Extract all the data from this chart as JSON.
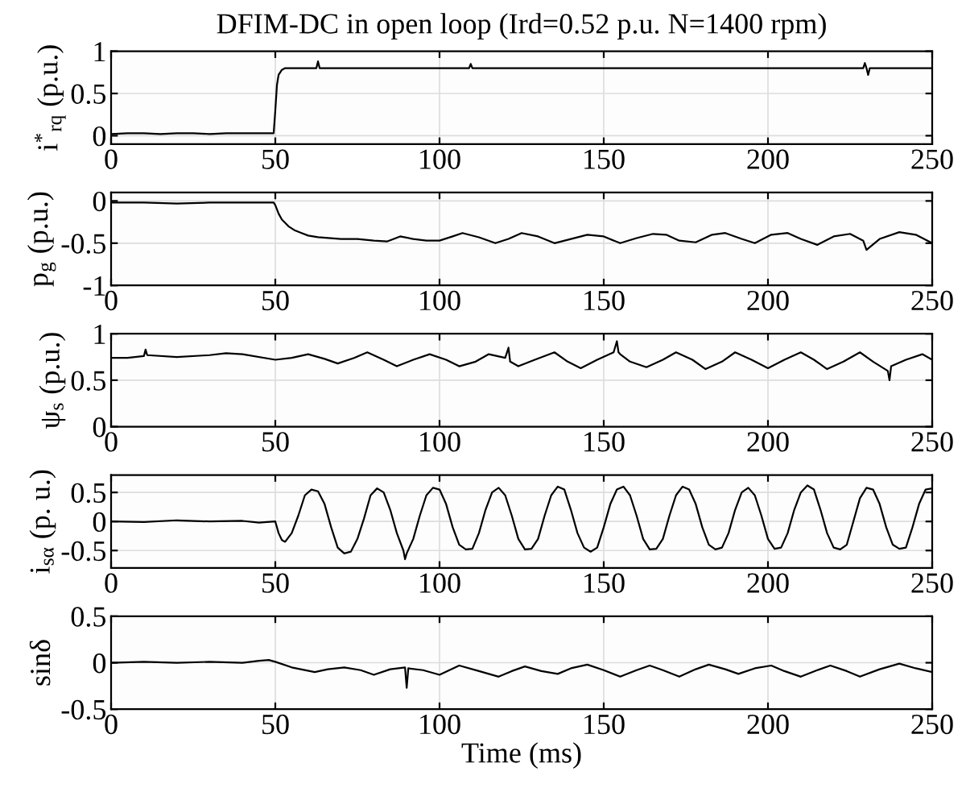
{
  "chart_data": [
    {
      "type": "line",
      "title": "DFIM-DC in open loop (Ird=0.52 p.u. N=1400 rpm)",
      "ylabel": "i$^{*}$$_{rq}$ (p.u.)",
      "xlim": [
        0,
        250
      ],
      "xticks": [
        0,
        50,
        100,
        150,
        200,
        250
      ],
      "ylim": [
        -0.1,
        1
      ],
      "yticks": [
        0,
        0.5,
        1
      ],
      "grid": true,
      "series": [
        {
          "color": "#000000",
          "x": [
            0,
            5,
            10,
            15,
            20,
            25,
            30,
            35,
            40,
            45,
            49.5,
            50,
            50.5,
            51,
            52,
            53,
            55,
            60,
            62.5,
            63,
            63.5,
            70,
            80,
            90,
            100,
            109,
            109.5,
            110,
            120,
            130,
            140,
            150,
            160,
            170,
            180,
            190,
            200,
            210,
            220,
            229,
            229.5,
            230,
            230.5,
            231,
            240,
            250
          ],
          "values": [
            0.02,
            0.03,
            0.03,
            0.02,
            0.03,
            0.03,
            0.02,
            0.03,
            0.03,
            0.03,
            0.03,
            0.3,
            0.6,
            0.72,
            0.78,
            0.8,
            0.8,
            0.8,
            0.8,
            0.88,
            0.8,
            0.8,
            0.8,
            0.8,
            0.8,
            0.8,
            0.85,
            0.8,
            0.8,
            0.8,
            0.8,
            0.8,
            0.8,
            0.8,
            0.8,
            0.8,
            0.8,
            0.8,
            0.8,
            0.8,
            0.86,
            0.8,
            0.72,
            0.8,
            0.8,
            0.8
          ]
        }
      ]
    },
    {
      "type": "line",
      "ylabel": "p$_{g}$ (p.u.)",
      "xlim": [
        0,
        250
      ],
      "xticks": [
        0,
        50,
        100,
        150,
        200,
        250
      ],
      "ylim": [
        -1,
        0.1
      ],
      "yticks": [
        -1,
        -0.5,
        0
      ],
      "grid": true,
      "series": [
        {
          "color": "#000000",
          "x": [
            0,
            10,
            20,
            30,
            40,
            49.5,
            50,
            51,
            52,
            54,
            56,
            58,
            60,
            63,
            70,
            75,
            80,
            84,
            88,
            92,
            96,
            100,
            104,
            107,
            112,
            117,
            121,
            125,
            130,
            135,
            140,
            145,
            150,
            155,
            160,
            165,
            169,
            173,
            178,
            183,
            187,
            192,
            196,
            201,
            206,
            210,
            215,
            220,
            225,
            229,
            230,
            234,
            240,
            245,
            250
          ],
          "values": [
            -0.02,
            -0.02,
            -0.03,
            -0.02,
            -0.02,
            -0.02,
            -0.05,
            -0.15,
            -0.22,
            -0.3,
            -0.35,
            -0.38,
            -0.41,
            -0.43,
            -0.45,
            -0.45,
            -0.47,
            -0.48,
            -0.42,
            -0.45,
            -0.47,
            -0.47,
            -0.42,
            -0.38,
            -0.43,
            -0.5,
            -0.45,
            -0.38,
            -0.42,
            -0.5,
            -0.45,
            -0.4,
            -0.42,
            -0.5,
            -0.44,
            -0.39,
            -0.4,
            -0.47,
            -0.49,
            -0.4,
            -0.38,
            -0.45,
            -0.5,
            -0.4,
            -0.38,
            -0.45,
            -0.52,
            -0.42,
            -0.39,
            -0.47,
            -0.58,
            -0.45,
            -0.37,
            -0.4,
            -0.5
          ]
        }
      ]
    },
    {
      "type": "line",
      "ylabel": "ψ$_{s}$ (p.u.)",
      "xlim": [
        0,
        250
      ],
      "xticks": [
        0,
        50,
        100,
        150,
        200,
        250
      ],
      "ylim": [
        0,
        1
      ],
      "yticks": [
        0,
        0.5,
        1
      ],
      "grid": true,
      "series": [
        {
          "color": "#000000",
          "x": [
            0,
            5,
            10,
            10.5,
            11,
            20,
            30,
            35,
            40,
            50,
            55,
            60,
            65,
            69,
            74,
            78,
            83,
            87,
            92,
            97,
            102,
            106,
            111,
            115,
            120,
            121,
            121.5,
            124,
            129,
            135,
            139,
            143,
            148,
            153,
            154,
            154.5,
            155,
            158,
            163,
            168,
            172,
            177,
            181,
            186,
            190,
            195,
            200,
            205,
            210,
            214,
            218,
            223,
            228,
            232,
            236.5,
            237,
            237.5,
            242,
            247,
            250
          ],
          "values": [
            0.74,
            0.74,
            0.76,
            0.83,
            0.77,
            0.75,
            0.77,
            0.79,
            0.78,
            0.72,
            0.74,
            0.78,
            0.73,
            0.68,
            0.74,
            0.8,
            0.72,
            0.65,
            0.72,
            0.78,
            0.72,
            0.65,
            0.7,
            0.78,
            0.74,
            0.85,
            0.7,
            0.65,
            0.72,
            0.8,
            0.7,
            0.63,
            0.72,
            0.8,
            0.92,
            0.8,
            0.78,
            0.7,
            0.64,
            0.72,
            0.8,
            0.72,
            0.62,
            0.7,
            0.8,
            0.72,
            0.63,
            0.72,
            0.8,
            0.72,
            0.62,
            0.7,
            0.8,
            0.7,
            0.6,
            0.5,
            0.65,
            0.72,
            0.78,
            0.72
          ]
        }
      ]
    },
    {
      "type": "line",
      "ylabel": "i$_{sα}$ (p. u.)",
      "xlim": [
        0,
        250
      ],
      "xticks": [
        0,
        50,
        100,
        150,
        200,
        250
      ],
      "ylim": [
        -0.8,
        0.8
      ],
      "yticks": [
        -0.5,
        0,
        0.5
      ],
      "grid": true,
      "series": [
        {
          "color": "#000000",
          "x": [
            0,
            10,
            20,
            30,
            40,
            45,
            50,
            51,
            52,
            53,
            55,
            57,
            59,
            61,
            63,
            65,
            67,
            69,
            71,
            73,
            75,
            77,
            79,
            81,
            83,
            85,
            87,
            89,
            89.5,
            90,
            92,
            94,
            96,
            98,
            100,
            102,
            104,
            106,
            108,
            110,
            112,
            114,
            116,
            118,
            120,
            122,
            124,
            126,
            128,
            130,
            132,
            134,
            136,
            138,
            140,
            142,
            144,
            146,
            148,
            150,
            152,
            154,
            156,
            158,
            160,
            162,
            164,
            166,
            168,
            170,
            172,
            174,
            176,
            178,
            180,
            182,
            184,
            186,
            188,
            190,
            192,
            194,
            196,
            198,
            200,
            202,
            204,
            206,
            208,
            210,
            212,
            214,
            216,
            218,
            220,
            222,
            224,
            226,
            228,
            230,
            232,
            234,
            236,
            238,
            240,
            242,
            244,
            246,
            248,
            250
          ],
          "values": [
            0,
            -0.01,
            0.02,
            0.0,
            0.01,
            -0.02,
            0.0,
            -0.2,
            -0.32,
            -0.35,
            -0.2,
            0.1,
            0.45,
            0.55,
            0.52,
            0.3,
            -0.1,
            -0.45,
            -0.55,
            -0.52,
            -0.3,
            0.05,
            0.45,
            0.57,
            0.5,
            0.2,
            -0.2,
            -0.5,
            -0.65,
            -0.55,
            -0.3,
            0.1,
            0.45,
            0.58,
            0.55,
            0.3,
            -0.1,
            -0.4,
            -0.48,
            -0.47,
            -0.2,
            0.2,
            0.5,
            0.58,
            0.45,
            0.1,
            -0.3,
            -0.48,
            -0.47,
            -0.3,
            0.1,
            0.45,
            0.6,
            0.55,
            0.2,
            -0.2,
            -0.45,
            -0.52,
            -0.45,
            -0.1,
            0.3,
            0.55,
            0.6,
            0.45,
            0.1,
            -0.3,
            -0.48,
            -0.47,
            -0.3,
            0.1,
            0.45,
            0.6,
            0.55,
            0.3,
            -0.1,
            -0.4,
            -0.48,
            -0.45,
            -0.2,
            0.2,
            0.5,
            0.58,
            0.45,
            0.1,
            -0.3,
            -0.47,
            -0.45,
            -0.2,
            0.2,
            0.5,
            0.62,
            0.55,
            0.2,
            -0.2,
            -0.45,
            -0.48,
            -0.4,
            0.0,
            0.4,
            0.58,
            0.55,
            0.3,
            -0.1,
            -0.4,
            -0.47,
            -0.45,
            -0.1,
            0.3,
            0.55,
            0.57
          ]
        }
      ]
    },
    {
      "type": "line",
      "ylabel": "sinδ",
      "xlabel": "Time (ms)",
      "xlim": [
        0,
        250
      ],
      "xticks": [
        0,
        50,
        100,
        150,
        200,
        250
      ],
      "ylim": [
        -0.5,
        0.5
      ],
      "yticks": [
        -0.5,
        0,
        0.5
      ],
      "grid": true,
      "series": [
        {
          "color": "#000000",
          "x": [
            0,
            10,
            20,
            30,
            40,
            45,
            48,
            50,
            55,
            62,
            66,
            71,
            76,
            80,
            85,
            89.5,
            90,
            90.5,
            95,
            100,
            106,
            112,
            118,
            122,
            126,
            131,
            136,
            140,
            145,
            150,
            155,
            160,
            164,
            168,
            173,
            178,
            182,
            187,
            191,
            196,
            201,
            205,
            210,
            215,
            219,
            224,
            228,
            234,
            240,
            245,
            250
          ],
          "values": [
            0.0,
            0.01,
            0.0,
            0.01,
            0.0,
            0.02,
            0.03,
            0.01,
            -0.05,
            -0.1,
            -0.07,
            -0.05,
            -0.08,
            -0.13,
            -0.07,
            -0.05,
            -0.27,
            -0.06,
            -0.08,
            -0.13,
            -0.03,
            -0.09,
            -0.15,
            -0.09,
            -0.04,
            -0.09,
            -0.12,
            -0.06,
            -0.02,
            -0.08,
            -0.15,
            -0.08,
            -0.03,
            -0.08,
            -0.15,
            -0.07,
            -0.02,
            -0.07,
            -0.12,
            -0.06,
            -0.03,
            -0.09,
            -0.15,
            -0.08,
            -0.03,
            -0.09,
            -0.15,
            -0.07,
            -0.01,
            -0.06,
            -0.1
          ]
        }
      ]
    }
  ]
}
